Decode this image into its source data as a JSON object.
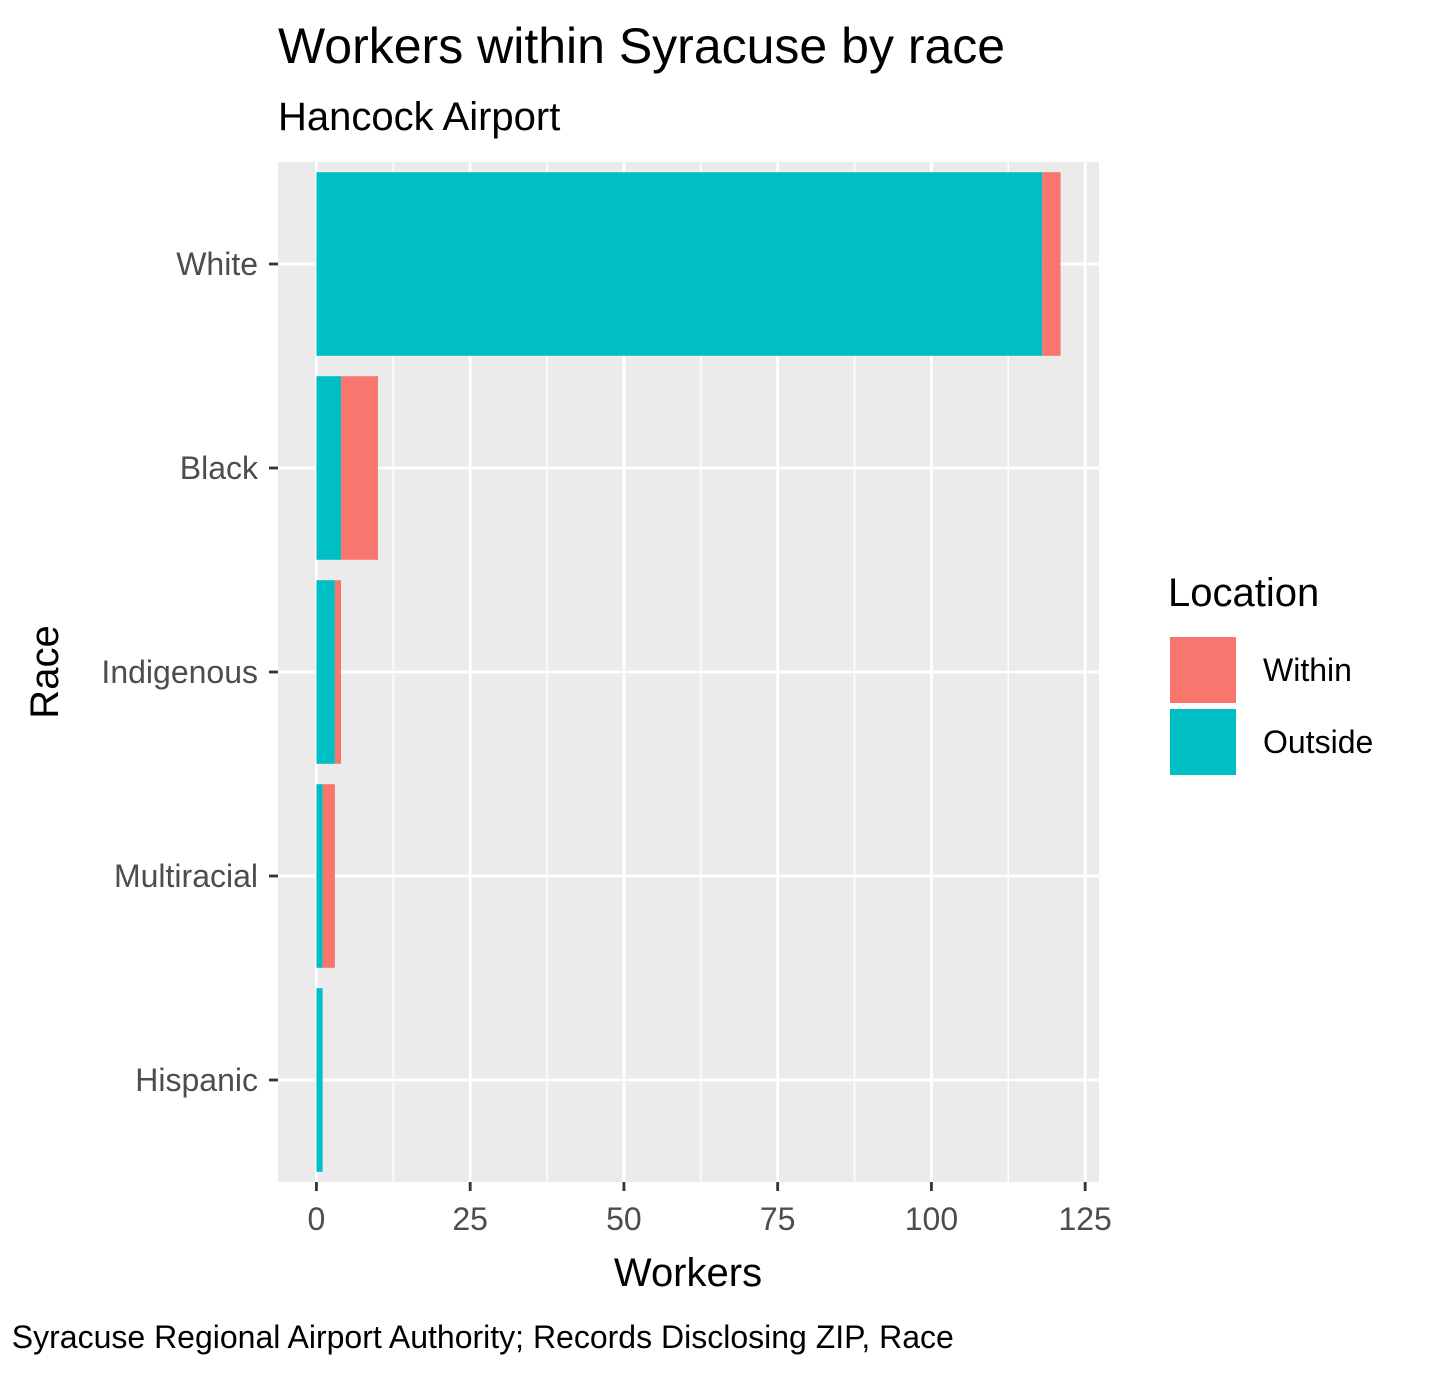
{
  "chart_data": {
    "type": "bar",
    "orientation": "horizontal",
    "stacked": true,
    "title": "Workers within Syracuse by race",
    "subtitle": "Hancock Airport",
    "xlabel": "Workers",
    "ylabel": "Race",
    "categories": [
      "White",
      "Black",
      "Indigenous",
      "Multiracial",
      "Hispanic"
    ],
    "series": [
      {
        "name": "Outside",
        "color": "#00BFC4",
        "values": [
          118,
          4,
          3,
          1,
          1
        ]
      },
      {
        "name": "Within",
        "color": "#F8766D",
        "values": [
          3,
          6,
          1,
          2,
          0
        ]
      }
    ],
    "xlim": [
      -6.25,
      127.25
    ],
    "xticks": [
      0,
      25,
      50,
      75,
      100,
      125
    ],
    "xtick_labels": [
      "0",
      "25",
      "50",
      "75",
      "100",
      "125"
    ],
    "legend": {
      "title": "Location",
      "entries": [
        "Within",
        "Outside"
      ],
      "colors": [
        "#F8766D",
        "#00BFC4"
      ],
      "position": "right"
    },
    "caption": ": Syracuse Regional Airport Authority; Records Disclosing ZIP, Race",
    "grid": true,
    "panel_background": "#EBEBEB"
  }
}
